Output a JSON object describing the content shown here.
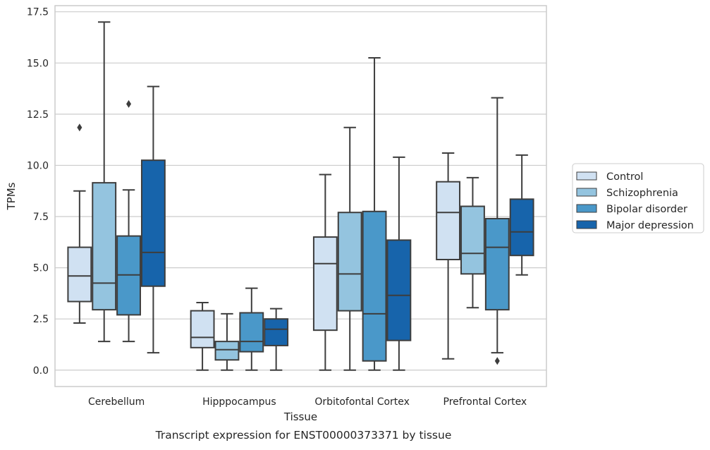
{
  "chart_data": {
    "type": "box",
    "xlabel": "Tissue",
    "ylabel": "TPMs",
    "caption": "Transcript expression for ENST00000373371 by tissue",
    "ylim": [
      -0.8,
      17.8
    ],
    "yticks": [
      0.0,
      2.5,
      5.0,
      7.5,
      10.0,
      12.5,
      15.0,
      17.5
    ],
    "ytick_labels": [
      "0.0",
      "2.5",
      "5.0",
      "7.5",
      "10.0",
      "12.5",
      "15.0",
      "17.5"
    ],
    "grid": true,
    "legend_position": "right",
    "categories": [
      "Cerebellum",
      "Hipppocampus",
      "Orbitofontal Cortex",
      "Prefrontal Cortex"
    ],
    "series": [
      {
        "name": "Control",
        "color": "#d0e1f2",
        "boxes": [
          {
            "whisker_low": 2.3,
            "q1": 3.35,
            "median": 4.6,
            "q3": 6.0,
            "whisker_high": 8.75,
            "outliers": [
              11.85
            ]
          },
          {
            "whisker_low": 0.0,
            "q1": 1.1,
            "median": 1.6,
            "q3": 2.9,
            "whisker_high": 3.3,
            "outliers": []
          },
          {
            "whisker_low": 0.0,
            "q1": 1.95,
            "median": 5.2,
            "q3": 6.5,
            "whisker_high": 9.55,
            "outliers": []
          },
          {
            "whisker_low": 0.55,
            "q1": 5.4,
            "median": 7.7,
            "q3": 9.2,
            "whisker_high": 10.6,
            "outliers": []
          }
        ]
      },
      {
        "name": "Schizophrenia",
        "color": "#94c4df",
        "boxes": [
          {
            "whisker_low": 1.4,
            "q1": 2.95,
            "median": 4.25,
            "q3": 9.15,
            "whisker_high": 17.0,
            "outliers": []
          },
          {
            "whisker_low": 0.0,
            "q1": 0.5,
            "median": 1.0,
            "q3": 1.4,
            "whisker_high": 2.75,
            "outliers": []
          },
          {
            "whisker_low": 0.0,
            "q1": 2.9,
            "median": 4.7,
            "q3": 7.7,
            "whisker_high": 11.85,
            "outliers": []
          },
          {
            "whisker_low": 3.05,
            "q1": 4.7,
            "median": 5.7,
            "q3": 8.0,
            "whisker_high": 9.4,
            "outliers": []
          }
        ]
      },
      {
        "name": "Bipolar disorder",
        "color": "#4a98c9",
        "boxes": [
          {
            "whisker_low": 1.4,
            "q1": 2.7,
            "median": 4.65,
            "q3": 6.55,
            "whisker_high": 8.8,
            "outliers": [
              13.0
            ]
          },
          {
            "whisker_low": 0.0,
            "q1": 0.9,
            "median": 1.4,
            "q3": 2.8,
            "whisker_high": 4.0,
            "outliers": []
          },
          {
            "whisker_low": 0.0,
            "q1": 0.45,
            "median": 2.75,
            "q3": 7.75,
            "whisker_high": 15.25,
            "outliers": []
          },
          {
            "whisker_low": 0.85,
            "q1": 2.95,
            "median": 6.0,
            "q3": 7.4,
            "whisker_high": 13.3,
            "outliers": [
              0.45
            ]
          }
        ]
      },
      {
        "name": "Major depression",
        "color": "#1764ab",
        "boxes": [
          {
            "whisker_low": 0.85,
            "q1": 4.1,
            "median": 5.75,
            "q3": 10.25,
            "whisker_high": 13.85,
            "outliers": []
          },
          {
            "whisker_low": 0.0,
            "q1": 1.2,
            "median": 2.0,
            "q3": 2.5,
            "whisker_high": 3.0,
            "outliers": []
          },
          {
            "whisker_low": 0.0,
            "q1": 1.45,
            "median": 3.65,
            "q3": 6.35,
            "whisker_high": 10.4,
            "outliers": []
          },
          {
            "whisker_low": 4.65,
            "q1": 5.6,
            "median": 6.75,
            "q3": 8.35,
            "whisker_high": 10.5,
            "outliers": []
          }
        ]
      }
    ]
  }
}
